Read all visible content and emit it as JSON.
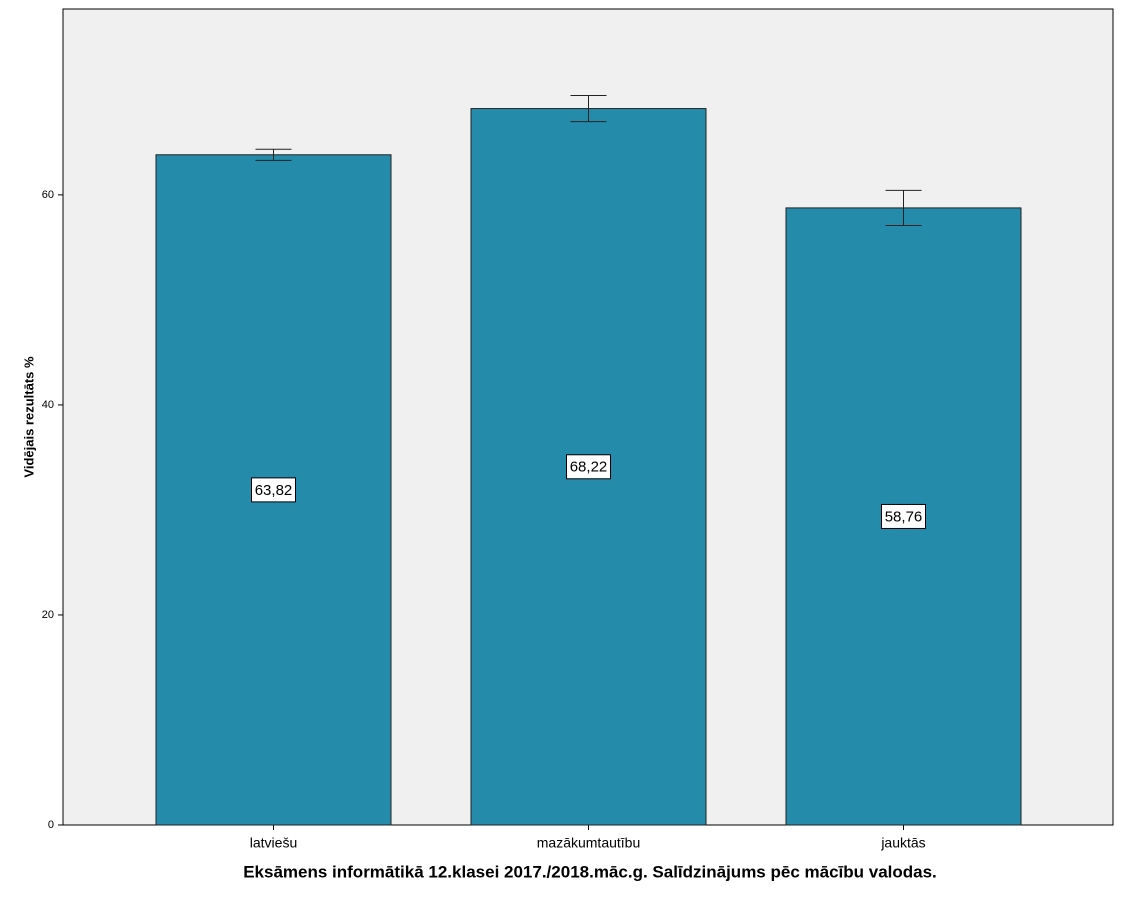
{
  "chart_data": {
    "type": "bar",
    "x_label": "Eksāmens informātikā 12.klasei 2017./2018.māc.g. Salīdzinājums pēc mācību valodas.",
    "y_label": "Vidējais rezultāts %",
    "categories": [
      "latviešu",
      "mazākumtautību",
      "jauktās"
    ],
    "values": [
      63.82,
      68.22,
      58.76
    ],
    "value_labels": [
      "63,82",
      "68,22",
      "58,76"
    ],
    "errors": [
      0.53,
      1.24,
      1.67
    ],
    "color": "#248bab",
    "ylim": [
      0,
      77.7
    ],
    "yticks": [
      0,
      20,
      40,
      60
    ],
    "grid": false
  }
}
